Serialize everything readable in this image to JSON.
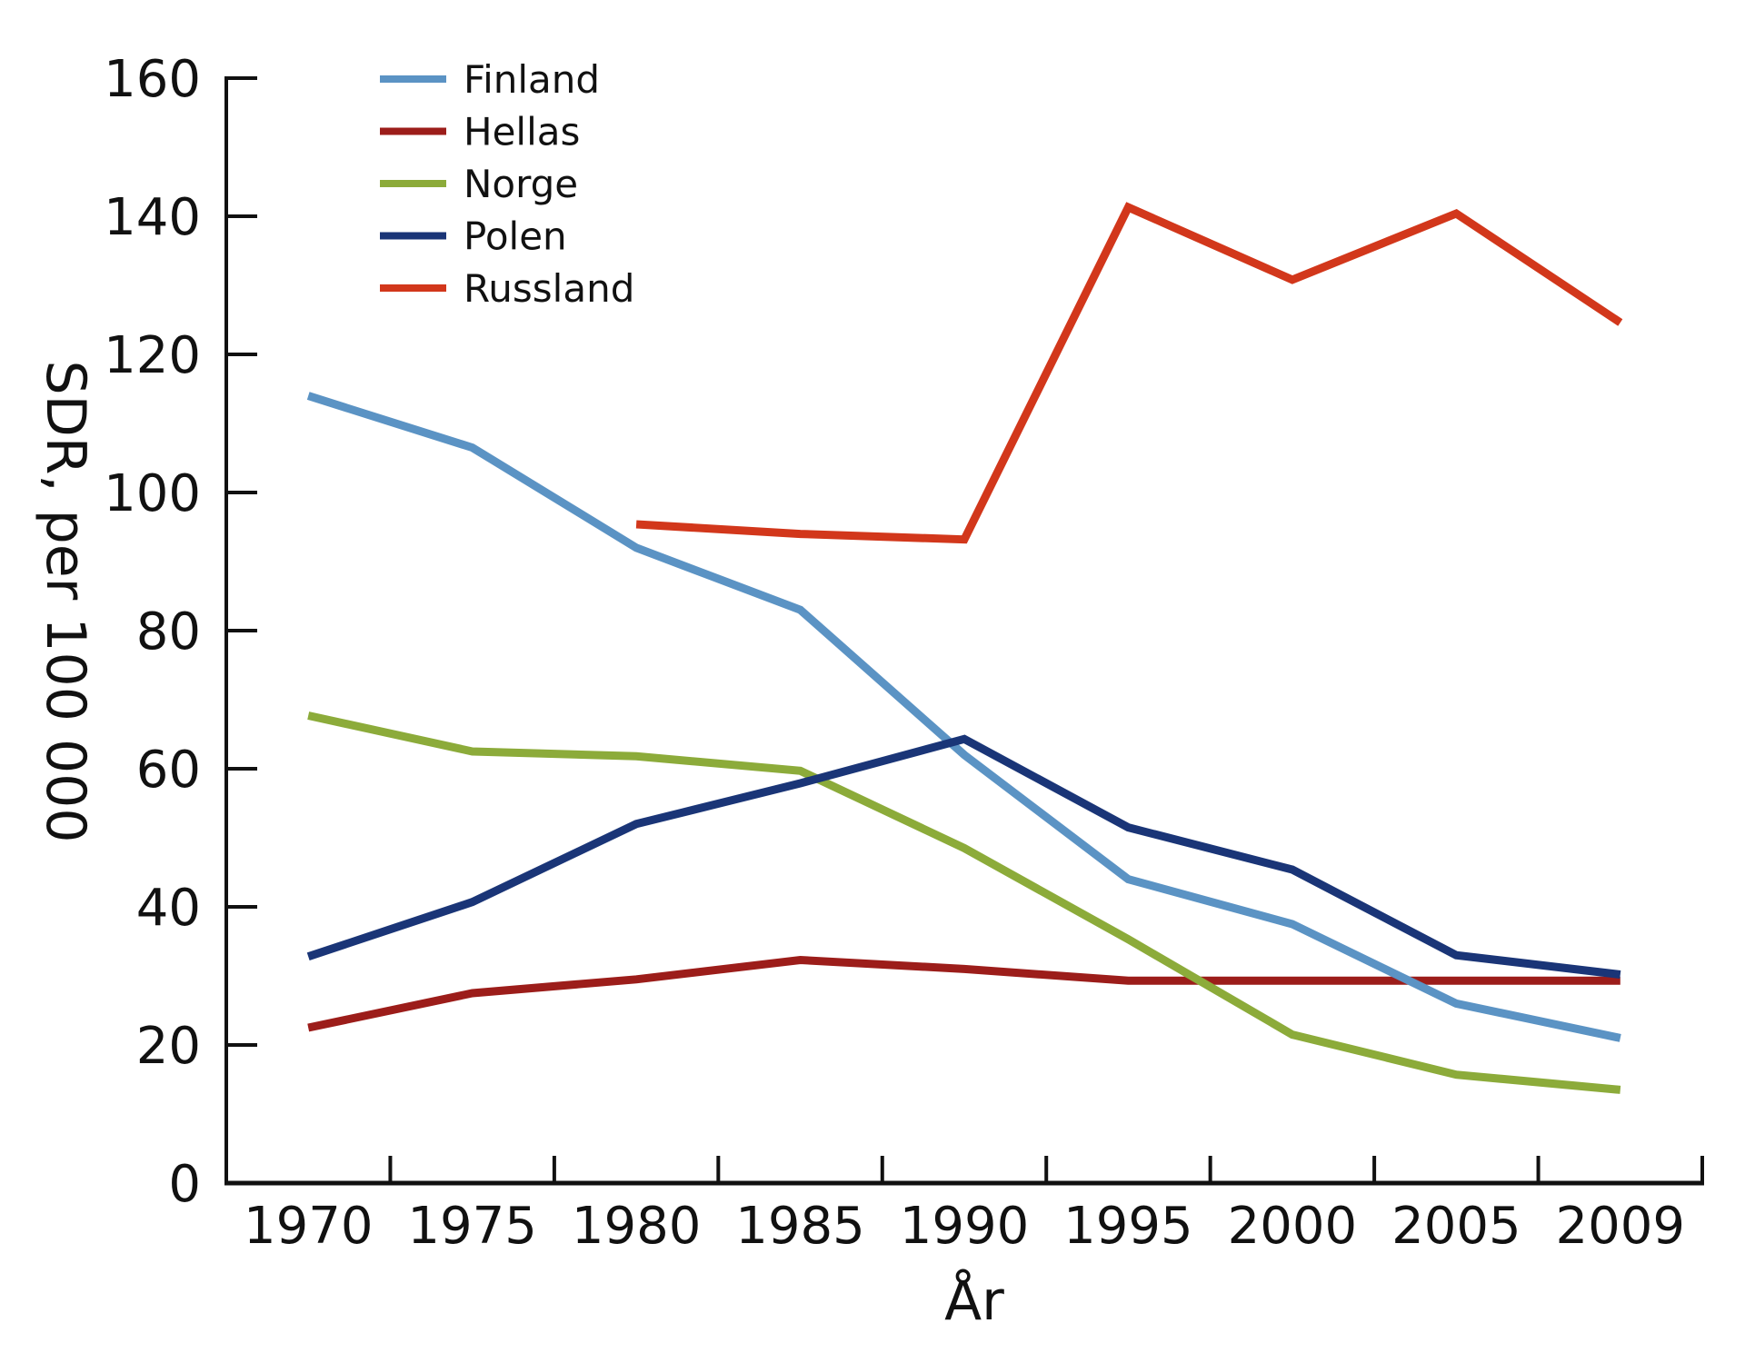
{
  "chart_data": {
    "type": "line",
    "title": "",
    "xlabel": "År",
    "ylabel": "SDR, per 100 000",
    "ylim": [
      0,
      160
    ],
    "yticks": [
      0,
      20,
      40,
      60,
      80,
      100,
      120,
      140,
      160
    ],
    "categories": [
      "1970",
      "1975",
      "1980",
      "1985",
      "1990",
      "1995",
      "2000",
      "2005",
      "2009"
    ],
    "grid": false,
    "legend_position": "top-left",
    "series": [
      {
        "name": "Finland",
        "color": "#5b93c4",
        "values": [
          114,
          106.5,
          92,
          83,
          62,
          44,
          37.5,
          26,
          21
        ]
      },
      {
        "name": "Hellas",
        "color": "#9c1d1a",
        "values": [
          22.5,
          27.5,
          29.5,
          32.3,
          31,
          29.3,
          29.3,
          29.3,
          29.3
        ]
      },
      {
        "name": "Norge",
        "color": "#8cab3a",
        "values": [
          67.7,
          62.5,
          61.8,
          59.7,
          48.5,
          35.3,
          21.5,
          15.7,
          13.5
        ]
      },
      {
        "name": "Polen",
        "color": "#1a3577",
        "values": [
          32.8,
          40.7,
          52,
          57.9,
          64.3,
          51.5,
          45.4,
          33,
          30.2
        ]
      },
      {
        "name": "Russland",
        "color": "#d2371b",
        "values": [
          null,
          null,
          95.4,
          94,
          93.2,
          141.3,
          130.8,
          140.4,
          124.6
        ]
      }
    ]
  }
}
